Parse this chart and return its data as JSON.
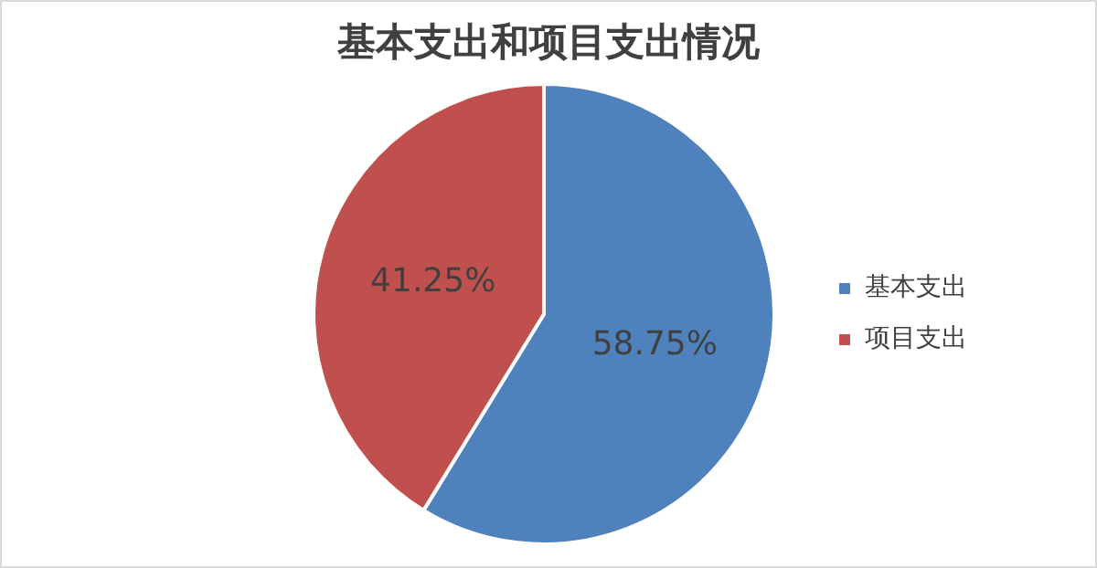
{
  "chart_data": {
    "type": "pie",
    "title": "基本支出和项目支出情况",
    "categories": [
      "基本支出",
      "项目支出"
    ],
    "values": [
      58.75,
      41.25
    ],
    "colors": [
      "#4f81bd",
      "#c0504d"
    ],
    "value_labels": [
      "58.75%",
      "41.25%"
    ],
    "legend": "right"
  }
}
